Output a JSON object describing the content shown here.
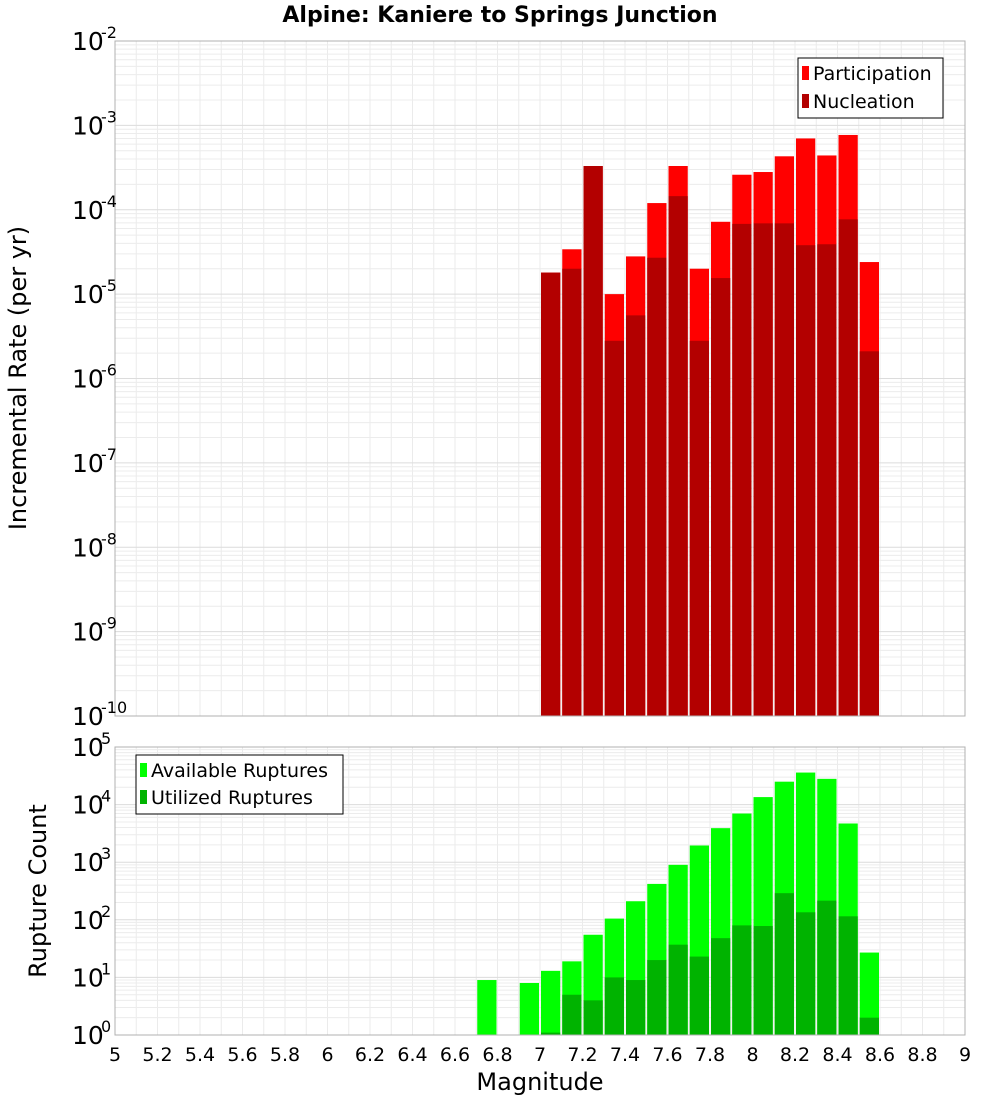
{
  "chart_data": [
    {
      "type": "bar",
      "title": "Alpine: Kaniere to Springs Junction",
      "xlabel": "",
      "ylabel": "Incremental Rate (per yr)",
      "yscale": "log",
      "ylim": [
        1e-10,
        0.01
      ],
      "xlim": [
        5,
        9
      ],
      "grid": true,
      "legend_position": "top-right",
      "x": [
        7.0,
        7.1,
        7.2,
        7.3,
        7.4,
        7.5,
        7.6,
        7.7,
        7.8,
        7.9,
        8.0,
        8.1,
        8.2,
        8.3,
        8.4,
        8.5
      ],
      "series": [
        {
          "name": "Participation",
          "color": "#ff0000",
          "values": [
            1.8e-05,
            3.4e-05,
            0.00033,
            1e-05,
            2.8e-05,
            0.00012,
            0.00033,
            2e-05,
            7.2e-05,
            0.00026,
            0.00028,
            0.00043,
            0.0007,
            0.00044,
            0.00077,
            2.4e-05
          ]
        },
        {
          "name": "Nucleation",
          "color": "#b30000",
          "values": [
            1.8e-05,
            2e-05,
            0.00033,
            2.8e-06,
            5.6e-06,
            2.7e-05,
            0.000145,
            2.8e-06,
            1.55e-05,
            6.8e-05,
            6.9e-05,
            6.9e-05,
            3.8e-05,
            3.9e-05,
            7.7e-05,
            2.1e-06
          ]
        }
      ],
      "yticks": {
        "base": "10",
        "exponents": [
          "-10",
          "-9",
          "-8",
          "-7",
          "-6",
          "-5",
          "-4",
          "-3",
          "-2"
        ]
      }
    },
    {
      "type": "bar",
      "title": "",
      "xlabel": "Magnitude",
      "ylabel": "Rupture Count",
      "yscale": "log",
      "ylim": [
        1,
        100000
      ],
      "xlim": [
        5,
        9
      ],
      "grid": true,
      "legend_position": "top-left",
      "x": [
        6.7,
        6.8,
        6.9,
        7.0,
        7.1,
        7.2,
        7.3,
        7.4,
        7.5,
        7.6,
        7.7,
        7.8,
        7.9,
        8.0,
        8.1,
        8.2,
        8.3,
        8.4,
        8.5
      ],
      "series": [
        {
          "name": "Available Ruptures",
          "color": "#00ff00",
          "values": [
            9,
            null,
            8,
            13,
            19,
            55,
            105,
            210,
            420,
            900,
            1950,
            3900,
            7000,
            13500,
            25000,
            36000,
            28000,
            4700,
            27
          ]
        },
        {
          "name": "Utilized Ruptures",
          "color": "#00b300",
          "values": [
            null,
            null,
            null,
            1.1,
            5,
            4,
            10,
            9,
            20,
            37,
            23,
            48,
            80,
            78,
            290,
            135,
            215,
            115,
            2
          ]
        }
      ],
      "yticks": {
        "base": "10",
        "exponents": [
          "0",
          "1",
          "2",
          "3",
          "4",
          "5"
        ]
      },
      "xticks": [
        "5",
        "5.2",
        "5.4",
        "5.6",
        "5.8",
        "6",
        "6.2",
        "6.4",
        "6.6",
        "6.8",
        "7",
        "7.2",
        "7.4",
        "7.6",
        "7.8",
        "8",
        "8.2",
        "8.4",
        "8.6",
        "8.8",
        "9"
      ]
    }
  ]
}
